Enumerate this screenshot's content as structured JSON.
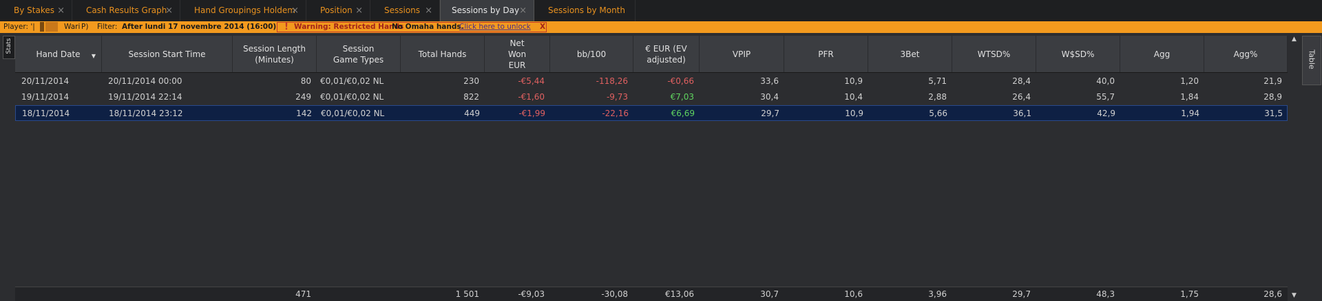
{
  "tabs": [
    {
      "label": "By Stakes",
      "active": false
    },
    {
      "label": "Cash Results Graph",
      "active": false
    },
    {
      "label": "Hand Groupings Holdem",
      "active": false
    },
    {
      "label": "Position",
      "active": false
    },
    {
      "label": "Sessions",
      "active": false
    },
    {
      "label": "Sessions by Day",
      "active": true
    },
    {
      "label": "Sessions by Month",
      "active": false
    }
  ],
  "tab_close": "×",
  "filter_bar": {
    "player_label": "Player: '|",
    "player_name": "Wari",
    "player_suffix": "P)",
    "filter_label": "Filter:",
    "filter_value": "After lundi 17 novembre 2014 (16:00)",
    "warning_icon": "!",
    "warning_text": "Warning: Restricted Hands",
    "restriction": "No Omaha hands.",
    "unlock_link": "Click here to unlock",
    "close_x": "X"
  },
  "side_tabs": {
    "left": "Stats",
    "right": "Table"
  },
  "columns": [
    "Hand Date",
    "Session Start Time",
    "Session Length (Minutes)",
    "Session Game Types",
    "Total Hands",
    "Net Won EUR",
    "bb/100",
    "€ EUR (EV adjusted)",
    "VPIP",
    "PFR",
    "3Bet",
    "WTSD%",
    "W$SD%",
    "Agg",
    "Agg%"
  ],
  "rows": [
    {
      "hand_date": "20/11/2014",
      "start": "20/11/2014 00:00",
      "length": "80",
      "types": "€0,01/€0,02 NL",
      "hands": "230",
      "net": "-€5,44",
      "bb100": "-118,26",
      "ev": "-€0,66",
      "vpip": "33,6",
      "pfr": "10,9",
      "threebet": "5,71",
      "wtsd": "28,4",
      "wssd": "40,0",
      "agg": "1,20",
      "aggp": "21,9",
      "selected": false
    },
    {
      "hand_date": "19/11/2014",
      "start": "19/11/2014 22:14",
      "length": "249",
      "types": "€0,01/€0,02 NL",
      "hands": "822",
      "net": "-€1,60",
      "bb100": "-9,73",
      "ev": "€7,03",
      "vpip": "30,4",
      "pfr": "10,4",
      "threebet": "2,88",
      "wtsd": "26,4",
      "wssd": "55,7",
      "agg": "1,84",
      "aggp": "28,9",
      "selected": false
    },
    {
      "hand_date": "18/11/2014",
      "start": "18/11/2014 23:12",
      "length": "142",
      "types": "€0,01/€0,02 NL",
      "hands": "449",
      "net": "-€1,99",
      "bb100": "-22,16",
      "ev": "€6,69",
      "vpip": "29,7",
      "pfr": "10,9",
      "threebet": "5,66",
      "wtsd": "36,1",
      "wssd": "42,9",
      "agg": "1,94",
      "aggp": "31,5",
      "selected": true
    }
  ],
  "totals": {
    "length": "471",
    "hands": "1 501",
    "net": "-€9,03",
    "bb100": "-30,08",
    "ev": "€13,06",
    "vpip": "30,7",
    "pfr": "10,6",
    "threebet": "3,96",
    "wtsd": "29,7",
    "wssd": "48,3",
    "agg": "1,75",
    "aggp": "28,6"
  },
  "colors": {
    "negative": "#e06060",
    "positive": "#5fd35f",
    "accent": "#e8911f",
    "filter_bar": "#f39a1e",
    "selected_row": "#0e2044"
  }
}
